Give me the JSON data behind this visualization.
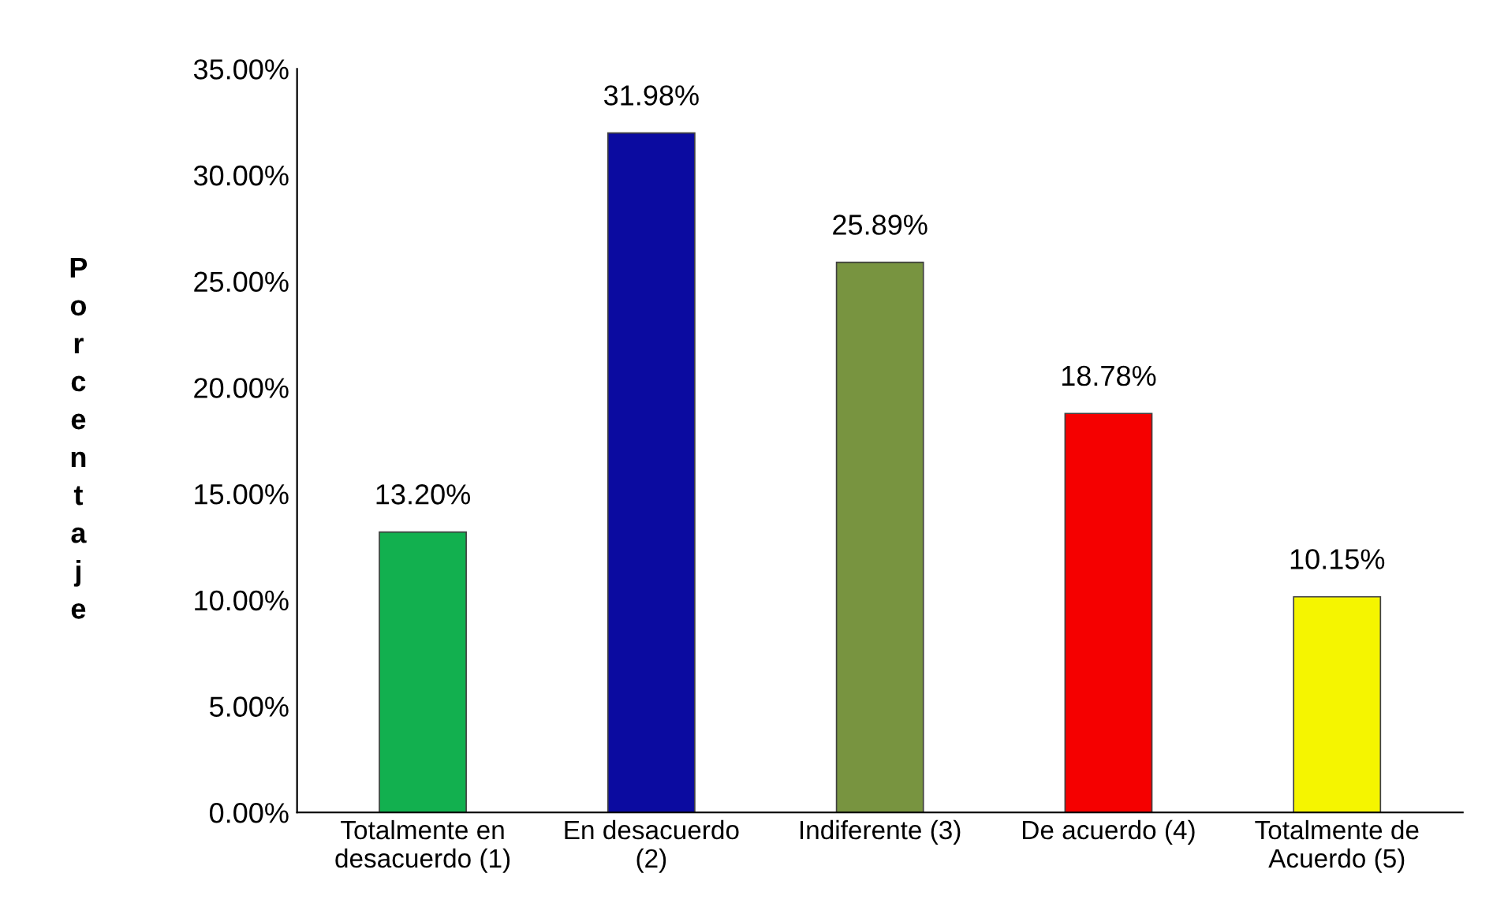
{
  "chart_data": {
    "type": "bar",
    "ylabel": "Porcentaje",
    "categories": [
      "Totalmente en\ndesacuerdo (1)",
      "En desacuerdo\n(2)",
      "Indiferente (3)",
      "De acuerdo (4)",
      "Totalmente de\nAcuerdo (5)"
    ],
    "values": [
      13.2,
      31.98,
      25.89,
      18.78,
      10.15
    ],
    "colors": [
      "#12b04f",
      "#0b0ba0",
      "#789440",
      "#f50000",
      "#f5f500"
    ],
    "value_labels": [
      "13.20%",
      "31.98%",
      "25.89%",
      "18.78%",
      "10.15%"
    ],
    "ylim": [
      0,
      35
    ],
    "yticks": [
      {
        "value": 0,
        "label": "0.00%"
      },
      {
        "value": 5,
        "label": "5.00%"
      },
      {
        "value": 10,
        "label": "10.00%"
      },
      {
        "value": 15,
        "label": "15.00%"
      },
      {
        "value": 20,
        "label": "20.00%"
      },
      {
        "value": 25,
        "label": "25.00%"
      },
      {
        "value": 30,
        "label": "30.00%"
      },
      {
        "value": 35,
        "label": "35.00%"
      }
    ],
    "grid": false,
    "legend": false
  }
}
